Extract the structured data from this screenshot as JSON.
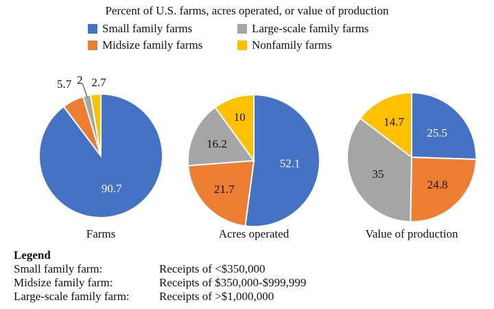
{
  "chart_data": {
    "type": "pie",
    "title": "Percent of U.S. farms, acres operated, or value of production",
    "legend": [
      "Small family farms",
      "Large-scale family farms",
      "Midsize family farms",
      "Nonfamily farms"
    ],
    "legend_placement": "top",
    "categories": [
      "Small family farms",
      "Midsize family farms",
      "Large-scale family farms",
      "Nonfamily farms"
    ],
    "colors": [
      "#4472C4",
      "#ED7D31",
      "#A5A5A5",
      "#FFC000"
    ],
    "label_colors": [
      "#ffffff",
      "#111111",
      "#111111",
      "#111111"
    ],
    "pies": [
      {
        "name": "Farms",
        "values": [
          90.7,
          5.7,
          2,
          2.7
        ],
        "labels": [
          "90.7",
          "5.7",
          "2",
          "2.7"
        ]
      },
      {
        "name": "Acres operated",
        "values": [
          52.1,
          21.7,
          16.2,
          10
        ],
        "labels": [
          "52.1",
          "21.7",
          "16.2",
          "10"
        ]
      },
      {
        "name": "Value of production",
        "values": [
          25.5,
          24.8,
          35,
          14.7
        ],
        "labels": [
          "25.5",
          "24.8",
          "35",
          "14.7"
        ]
      }
    ]
  },
  "notes": {
    "heading": "Legend",
    "rows": [
      {
        "term": "Small family farm:",
        "def": "Receipts of <$350,000"
      },
      {
        "term": "Midsize family farm:",
        "def": "Receipts of $350,000-$999,999"
      },
      {
        "term": "Large-scale family farm:",
        "def": "Receipts of >$1,000,000"
      }
    ]
  }
}
